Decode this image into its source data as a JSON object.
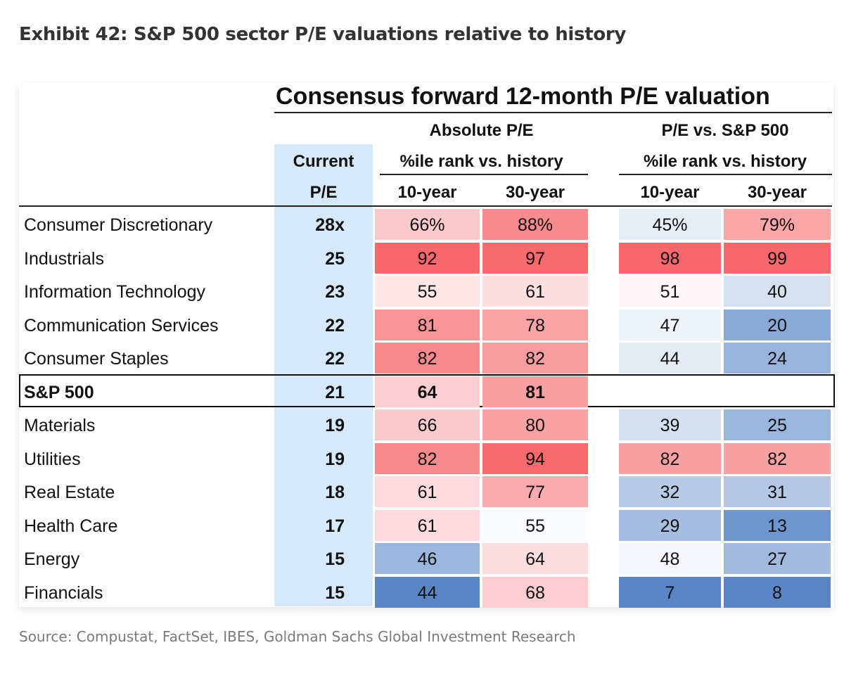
{
  "title": "Exhibit 42: S&P 500 sector P/E valuations relative to history",
  "source": "Source: Compustat, FactSet, IBES, Goldman Sachs Global Investment Research",
  "chart_data": {
    "type": "heatmap",
    "header": "Consensus forward 12-month P/E valuation",
    "groups": [
      {
        "label": "Absolute P/E",
        "sublabel": "%ile rank vs. history"
      },
      {
        "label": "P/E vs. S&P 500",
        "sublabel": "%ile rank vs. history"
      }
    ],
    "current_pe_header": [
      "Current",
      "P/E"
    ],
    "columns": [
      "10-year",
      "30-year",
      "10-year",
      "30-year"
    ],
    "color_scale": {
      "high": "#f6686c",
      "mid": "#ffffff",
      "low": "#5a86c5",
      "current_pe_bg": "#d5e9fb"
    },
    "rows": [
      {
        "sector": "Consumer Discretionary",
        "current_pe": "28x",
        "values": [
          "66%",
          "88%",
          "45%",
          "79%"
        ],
        "colors": [
          "#f9c9cc",
          "#f78b8e",
          "#e6edf7",
          "#f9a6a8"
        ]
      },
      {
        "sector": "Industrials",
        "current_pe": "25",
        "values": [
          "92",
          "97",
          "98",
          "99"
        ],
        "colors": [
          "#f6686c",
          "#f76a6d",
          "#f6686c",
          "#f6686c"
        ]
      },
      {
        "sector": "Information Technology",
        "current_pe": "23",
        "values": [
          "55",
          "61",
          "51",
          "40"
        ],
        "colors": [
          "#fde6e8",
          "#fcdfe1",
          "#fdf7fa",
          "#d6e1ef"
        ]
      },
      {
        "sector": "Communication Services",
        "current_pe": "22",
        "values": [
          "81",
          "78",
          "47",
          "20"
        ],
        "colors": [
          "#f89396",
          "#f9a5a8",
          "#eef2f9",
          "#8aa9d6"
        ]
      },
      {
        "sector": "Consumer Staples",
        "current_pe": "22",
        "values": [
          "82",
          "82",
          "44",
          "24"
        ],
        "colors": [
          "#f8898c",
          "#f99c9f",
          "#e4ebf5",
          "#99b4dc"
        ]
      },
      {
        "sector": "S&P 500",
        "current_pe": "21",
        "values": [
          "64",
          "81",
          "",
          ""
        ],
        "colors": [
          "#fbcfd2",
          "#f9a0a3",
          "#ffffff",
          "#ffffff"
        ],
        "highlight": true
      },
      {
        "sector": "Materials",
        "current_pe": "19",
        "values": [
          "66",
          "80",
          "39",
          "25"
        ],
        "colors": [
          "#fbcacd",
          "#f9a2a5",
          "#d4dff0",
          "#9bb6dc"
        ]
      },
      {
        "sector": "Utilities",
        "current_pe": "19",
        "values": [
          "82",
          "94",
          "82",
          "82"
        ],
        "colors": [
          "#f8898c",
          "#f6696d",
          "#f9a0a3",
          "#f9a0a3"
        ]
      },
      {
        "sector": "Real Estate",
        "current_pe": "18",
        "values": [
          "61",
          "77",
          "32",
          "31"
        ],
        "colors": [
          "#fcdadd",
          "#f9aaad",
          "#b7cae6",
          "#b4c8e5"
        ]
      },
      {
        "sector": "Health Care",
        "current_pe": "17",
        "values": [
          "61",
          "55",
          "29",
          "13"
        ],
        "colors": [
          "#fcdadd",
          "#fafbfe",
          "#a6bee0",
          "#6f95cd"
        ]
      },
      {
        "sector": "Energy",
        "current_pe": "15",
        "values": [
          "46",
          "64",
          "48",
          "27"
        ],
        "colors": [
          "#9bb6dc",
          "#fcdde0",
          "#f5f7fc",
          "#a1badd"
        ]
      },
      {
        "sector": "Financials",
        "current_pe": "15",
        "values": [
          "44",
          "68",
          "7",
          "8"
        ],
        "colors": [
          "#5a86c5",
          "#fccdd0",
          "#5a86c5",
          "#5a86c5"
        ]
      }
    ]
  }
}
